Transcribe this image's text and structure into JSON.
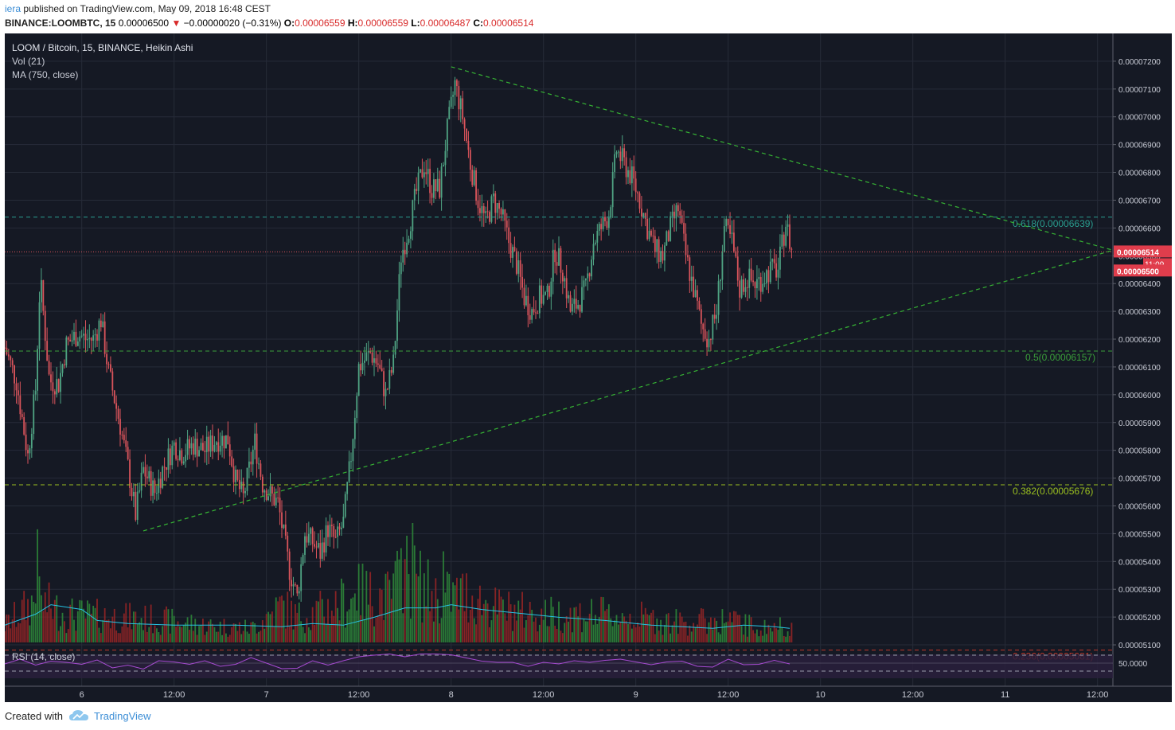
{
  "header": {
    "author": "iera",
    "published_text": "published on TradingView.com, May 09, 2018 16:48 CEST",
    "symbol": "BINANCE:LOOMBTC, 15",
    "price": "0.00006500",
    "change": "−0.00000020 (−0.31%)",
    "o_label": "O:",
    "o_val": "0.00006559",
    "h_label": "H:",
    "h_val": "0.00006559",
    "l_label": "L:",
    "l_val": "0.00006487",
    "c_label": "C:",
    "c_val": "0.00006514"
  },
  "legend": {
    "title": "LOOM / Bitcoin, 15, BINANCE, Heikin Ashi",
    "vol": "Vol (21)",
    "ma": "MA (750, close)",
    "rsi": "RSI (14, close)"
  },
  "footer": {
    "created": "Created with",
    "brand": "TradingView"
  },
  "colors": {
    "background": "#151924",
    "up": "#4fa383",
    "down": "#d9545b",
    "triangle": "#36b334",
    "fib_618": "#2a9d8f",
    "fib_5": "#3a9e3a",
    "fib_382": "#9abf1f",
    "fib_236": "#c0392b",
    "rsi": "#a64bd1",
    "vol_ma": "#27c4e4"
  },
  "chart_data": {
    "type": "candlestick",
    "chart_style": "Heikin Ashi",
    "y_axis_ticks": [
      "0.00007200",
      "0.00007100",
      "0.00007000",
      "0.00006900",
      "0.00006800",
      "0.00006700",
      "0.00006600",
      "0.00006500",
      "0.00006400",
      "0.00006300",
      "0.00006200",
      "0.00006100",
      "0.00006000",
      "0.00005900",
      "0.00005800",
      "0.00005700",
      "0.00005600",
      "0.00005500",
      "0.00005400",
      "0.00005300",
      "0.00005200",
      "0.00005100"
    ],
    "y_axis_tick_values": [
      7.2,
      7.1,
      7.0,
      6.9,
      6.8,
      6.7,
      6.6,
      6.5,
      6.4,
      6.3,
      6.2,
      6.1,
      6.0,
      5.9,
      5.8,
      5.7,
      5.6,
      5.5,
      5.4,
      5.3,
      5.2,
      5.1
    ],
    "y_unit_scale": "×0.00001 BTC",
    "x_axis_ticks": [
      "6",
      "12:00",
      "7",
      "12:00",
      "8",
      "12:00",
      "9",
      "12:00",
      "10",
      "12:00",
      "11",
      "12:00"
    ],
    "x_axis_tick_hours": [
      24,
      36,
      48,
      60,
      72,
      84,
      96,
      108,
      120,
      132,
      144,
      156
    ],
    "x_range_hours": [
      14,
      158
    ],
    "y_range": [
      5.06,
      7.3
    ],
    "last_price_label": "0.00006514",
    "last_price": 6.514,
    "countdown_label": "11:09",
    "current_label": "0.00006500",
    "current_price": 6.5,
    "price_path": [
      [
        14.0,
        6.17
      ],
      [
        15.5,
        6.05
      ],
      [
        17.0,
        5.78
      ],
      [
        18.0,
        6.02
      ],
      [
        18.6,
        6.42
      ],
      [
        19.8,
        6.05
      ],
      [
        21.0,
        6.04
      ],
      [
        22.0,
        6.18
      ],
      [
        23.5,
        6.22
      ],
      [
        24.5,
        6.2
      ],
      [
        25.5,
        6.2
      ],
      [
        26.5,
        6.27
      ],
      [
        27.5,
        6.08
      ],
      [
        29.0,
        5.89
      ],
      [
        30.0,
        5.74
      ],
      [
        31.0,
        5.57
      ],
      [
        32.0,
        5.73
      ],
      [
        33.5,
        5.65
      ],
      [
        34.5,
        5.73
      ],
      [
        36.0,
        5.82
      ],
      [
        37.0,
        5.79
      ],
      [
        38.5,
        5.82
      ],
      [
        40.0,
        5.8
      ],
      [
        41.5,
        5.84
      ],
      [
        43.0,
        5.84
      ],
      [
        44.0,
        5.69
      ],
      [
        45.0,
        5.63
      ],
      [
        46.5,
        5.83
      ],
      [
        47.5,
        5.68
      ],
      [
        48.5,
        5.64
      ],
      [
        49.5,
        5.61
      ],
      [
        51.0,
        5.37
      ],
      [
        52.0,
        5.27
      ],
      [
        53.0,
        5.5
      ],
      [
        54.0,
        5.47
      ],
      [
        55.0,
        5.43
      ],
      [
        56.0,
        5.52
      ],
      [
        57.0,
        5.47
      ],
      [
        58.0,
        5.54
      ],
      [
        59.0,
        5.78
      ],
      [
        60.0,
        6.1
      ],
      [
        61.5,
        6.15
      ],
      [
        62.5,
        6.11
      ],
      [
        63.5,
        6.0
      ],
      [
        64.5,
        6.11
      ],
      [
        65.5,
        6.5
      ],
      [
        66.5,
        6.6
      ],
      [
        67.5,
        6.73
      ],
      [
        68.5,
        6.83
      ],
      [
        69.5,
        6.74
      ],
      [
        70.5,
        6.74
      ],
      [
        71.5,
        6.95
      ],
      [
        72.5,
        7.12
      ],
      [
        73.5,
        7.0
      ],
      [
        74.5,
        6.83
      ],
      [
        75.5,
        6.7
      ],
      [
        76.5,
        6.62
      ],
      [
        77.5,
        6.7
      ],
      [
        78.5,
        6.65
      ],
      [
        79.5,
        6.55
      ],
      [
        80.5,
        6.47
      ],
      [
        81.5,
        6.35
      ],
      [
        82.5,
        6.3
      ],
      [
        83.5,
        6.35
      ],
      [
        84.5,
        6.35
      ],
      [
        85.5,
        6.52
      ],
      [
        86.5,
        6.45
      ],
      [
        87.5,
        6.3
      ],
      [
        88.5,
        6.33
      ],
      [
        89.5,
        6.38
      ],
      [
        90.5,
        6.55
      ],
      [
        91.5,
        6.6
      ],
      [
        92.5,
        6.65
      ],
      [
        93.5,
        6.88
      ],
      [
        94.5,
        6.83
      ],
      [
        95.5,
        6.78
      ],
      [
        96.5,
        6.7
      ],
      [
        97.5,
        6.6
      ],
      [
        98.5,
        6.52
      ],
      [
        99.5,
        6.5
      ],
      [
        100.5,
        6.6
      ],
      [
        101.5,
        6.67
      ],
      [
        102.5,
        6.5
      ],
      [
        103.5,
        6.38
      ],
      [
        104.5,
        6.25
      ],
      [
        105.5,
        6.2
      ],
      [
        106.5,
        6.3
      ],
      [
        107.5,
        6.6
      ],
      [
        108.5,
        6.55
      ],
      [
        109.5,
        6.38
      ],
      [
        110.5,
        6.42
      ],
      [
        111.5,
        6.4
      ],
      [
        112.5,
        6.42
      ],
      [
        113.5,
        6.45
      ],
      [
        114.5,
        6.45
      ],
      [
        115.5,
        6.62
      ],
      [
        116.3,
        6.51
      ]
    ],
    "volume_range": [
      0,
      3.8
    ],
    "volume_profile": [
      [
        14,
        0.6
      ],
      [
        18,
        1.5
      ],
      [
        22,
        1.0
      ],
      [
        28,
        0.9
      ],
      [
        34,
        0.8
      ],
      [
        40,
        0.6
      ],
      [
        46,
        0.5
      ],
      [
        50,
        1.3
      ],
      [
        52,
        0.9
      ],
      [
        56,
        1.2
      ],
      [
        60,
        1.7
      ],
      [
        64,
        1.6
      ],
      [
        66,
        2.5
      ],
      [
        70,
        1.6
      ],
      [
        74,
        1.7
      ],
      [
        78,
        1.2
      ],
      [
        84,
        1.0
      ],
      [
        90,
        1.0
      ],
      [
        96,
        0.9
      ],
      [
        102,
        0.7
      ],
      [
        108,
        0.8
      ],
      [
        112,
        0.5
      ],
      [
        116,
        0.6
      ]
    ],
    "volume_spikes": [
      [
        18.3,
        3.6
      ],
      [
        65.5,
        3.0
      ],
      [
        71.0,
        2.9
      ],
      [
        60.0,
        2.5
      ],
      [
        67.0,
        3.8
      ]
    ],
    "volume_ma_path": [
      [
        14,
        0.55
      ],
      [
        18,
        0.9
      ],
      [
        20,
        1.2
      ],
      [
        24,
        1.05
      ],
      [
        26,
        0.7
      ],
      [
        30,
        0.6
      ],
      [
        36,
        0.55
      ],
      [
        44,
        0.55
      ],
      [
        50,
        0.5
      ],
      [
        54,
        0.6
      ],
      [
        58,
        0.55
      ],
      [
        62,
        0.8
      ],
      [
        66,
        1.1
      ],
      [
        70,
        1.1
      ],
      [
        72,
        1.2
      ],
      [
        76,
        1.05
      ],
      [
        80,
        0.95
      ],
      [
        86,
        0.8
      ],
      [
        92,
        0.7
      ],
      [
        98,
        0.55
      ],
      [
        102,
        0.5
      ],
      [
        106,
        0.45
      ],
      [
        110,
        0.55
      ],
      [
        114,
        0.5
      ],
      [
        116,
        0.45
      ]
    ],
    "rsi_range": [
      0,
      100
    ],
    "rsi_level_label": "50.0000",
    "rsi_bands": [
      70,
      50,
      30
    ],
    "rsi_path": [
      [
        14,
        48
      ],
      [
        16,
        60
      ],
      [
        18,
        45
      ],
      [
        20,
        55
      ],
      [
        22,
        52
      ],
      [
        24,
        47
      ],
      [
        26,
        58
      ],
      [
        28,
        38
      ],
      [
        30,
        45
      ],
      [
        32,
        35
      ],
      [
        34,
        56
      ],
      [
        36,
        53
      ],
      [
        38,
        47
      ],
      [
        40,
        56
      ],
      [
        42,
        42
      ],
      [
        44,
        47
      ],
      [
        46,
        64
      ],
      [
        48,
        50
      ],
      [
        50,
        36
      ],
      [
        52,
        37
      ],
      [
        54,
        56
      ],
      [
        56,
        45
      ],
      [
        58,
        56
      ],
      [
        60,
        66
      ],
      [
        62,
        70
      ],
      [
        64,
        73
      ],
      [
        66,
        66
      ],
      [
        68,
        73
      ],
      [
        70,
        73
      ],
      [
        72,
        71
      ],
      [
        74,
        63
      ],
      [
        76,
        55
      ],
      [
        78,
        52
      ],
      [
        80,
        52
      ],
      [
        82,
        42
      ],
      [
        84,
        52
      ],
      [
        86,
        48
      ],
      [
        88,
        56
      ],
      [
        90,
        52
      ],
      [
        92,
        57
      ],
      [
        94,
        60
      ],
      [
        96,
        53
      ],
      [
        98,
        46
      ],
      [
        100,
        53
      ],
      [
        102,
        55
      ],
      [
        104,
        42
      ],
      [
        106,
        40
      ],
      [
        108,
        60
      ],
      [
        110,
        46
      ],
      [
        112,
        47
      ],
      [
        114,
        57
      ],
      [
        116,
        48
      ]
    ],
    "triangle": {
      "upper": [
        [
          72.0,
          7.18
        ],
        [
          158.0,
          6.52
        ]
      ],
      "lower": [
        [
          32.0,
          5.51
        ],
        [
          158.0,
          6.52
        ]
      ]
    },
    "fib_levels": [
      {
        "label": "0.618(0.00006639)",
        "value": 6.639
      },
      {
        "label": "0.5(0.00006157)",
        "value": 6.157
      },
      {
        "label": "0.382(0.00005676)",
        "value": 5.676
      },
      {
        "label": "0.236(0.00005081)",
        "value": 5.081
      }
    ]
  }
}
